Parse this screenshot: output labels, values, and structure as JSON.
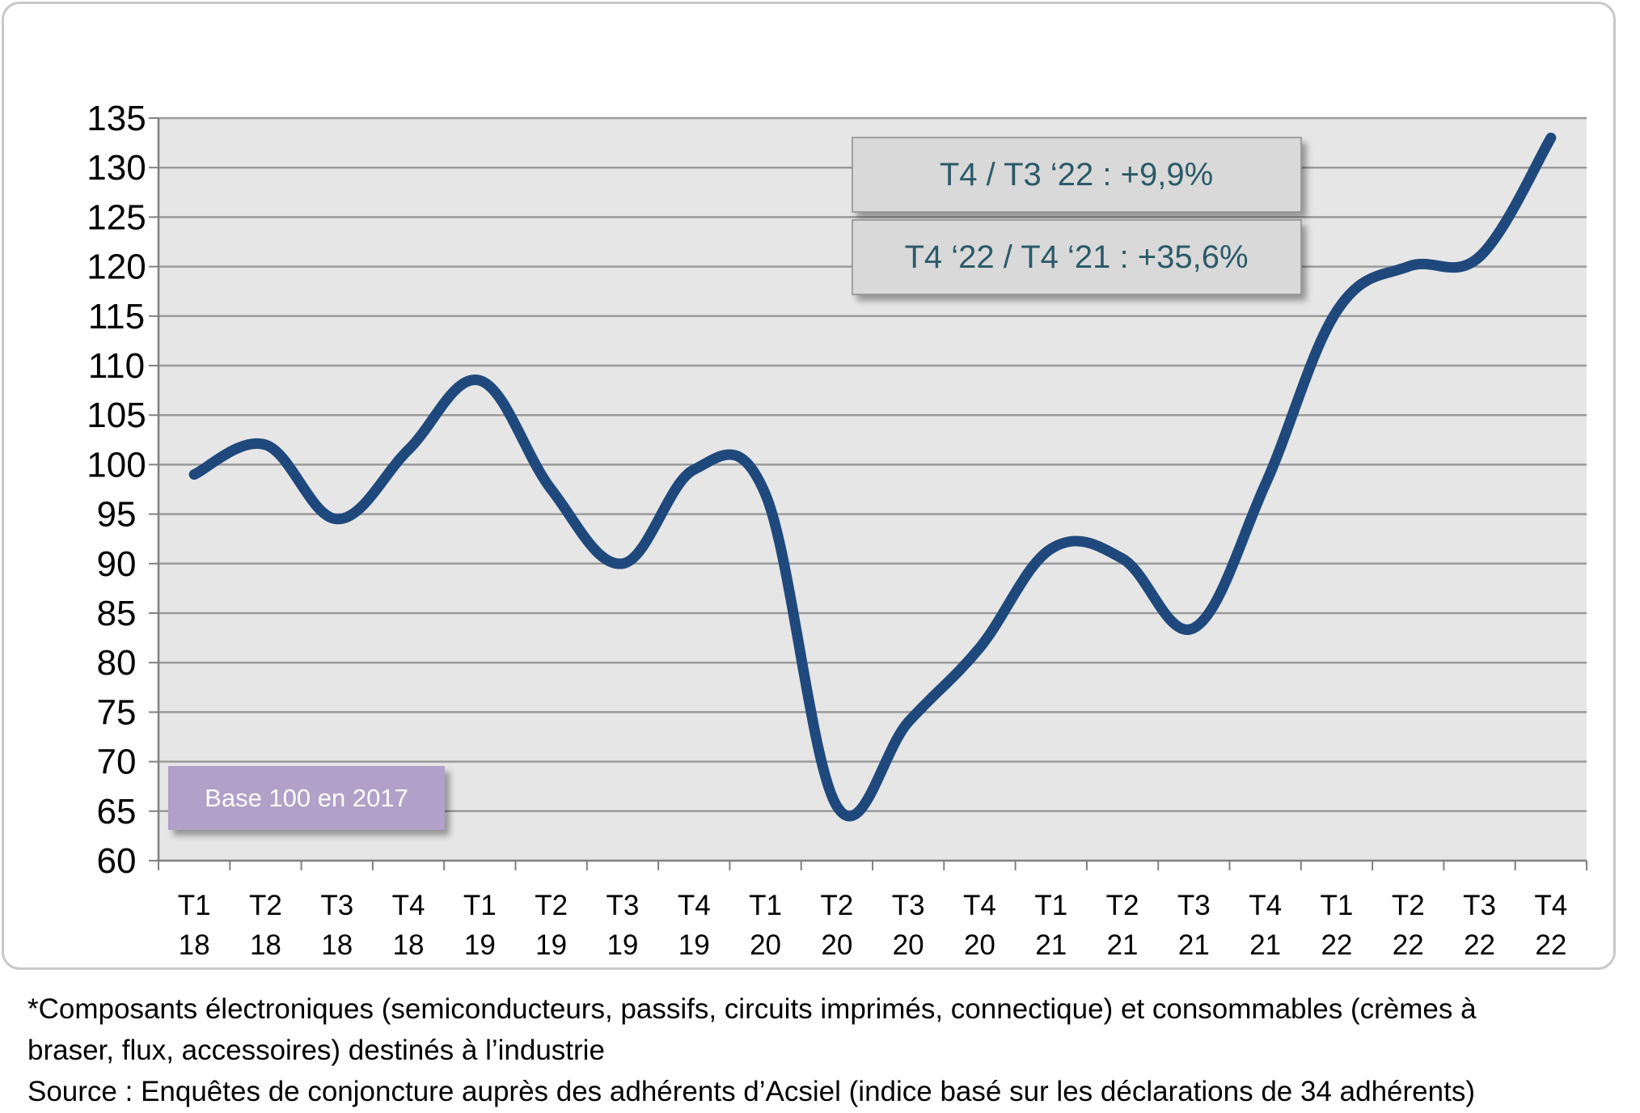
{
  "chart_data": {
    "type": "line",
    "categories": [
      [
        "T1",
        "18"
      ],
      [
        "T2",
        "18"
      ],
      [
        "T3",
        "18"
      ],
      [
        "T4",
        "18"
      ],
      [
        "T1",
        "19"
      ],
      [
        "T2",
        "19"
      ],
      [
        "T3",
        "19"
      ],
      [
        "T4",
        "19"
      ],
      [
        "T1",
        "20"
      ],
      [
        "T2",
        "20"
      ],
      [
        "T3",
        "20"
      ],
      [
        "T4",
        "20"
      ],
      [
        "T1",
        "21"
      ],
      [
        "T2",
        "21"
      ],
      [
        "T3",
        "21"
      ],
      [
        "T4",
        "21"
      ],
      [
        "T1",
        "22"
      ],
      [
        "T2",
        "22"
      ],
      [
        "T3",
        "22"
      ],
      [
        "T4",
        "22"
      ]
    ],
    "series": [
      {
        "values": [
          99,
          102,
          94.5,
          101.5,
          108.5,
          97.5,
          90,
          99.5,
          97,
          65.5,
          74,
          81.5,
          91.5,
          90.5,
          83.5,
          98,
          115.5,
          120,
          121,
          133
        ]
      }
    ],
    "ylim": [
      60,
      135
    ],
    "yticks": [
      60,
      65,
      70,
      75,
      80,
      85,
      90,
      95,
      100,
      105,
      110,
      115,
      120,
      125,
      130,
      135
    ],
    "grid": true,
    "colors": {
      "line": "#1f497d",
      "plot_bg": "#e6e6e6",
      "grid": "#9a9a9a",
      "callout_text": "#2b5a68",
      "base_box": "#b1a0c7"
    },
    "annotations": {
      "callout_1": "T4 / T3 ‘22  : +9,9%",
      "callout_2": "T4 ‘22 / T4 ‘21 : +35,6%",
      "base_note": "Base 100 en 2017"
    }
  },
  "footnote": {
    "line1": "*Composants électroniques (semiconducteurs, passifs, circuits imprimés, connectique) et consommables (crèmes à",
    "line2": "braser, flux, accessoires) destinés à l’industrie",
    "source": "Source : Enquêtes de conjoncture auprès des adhérents d’Acsiel (indice basé sur les déclarations de 34 adhérents)"
  }
}
